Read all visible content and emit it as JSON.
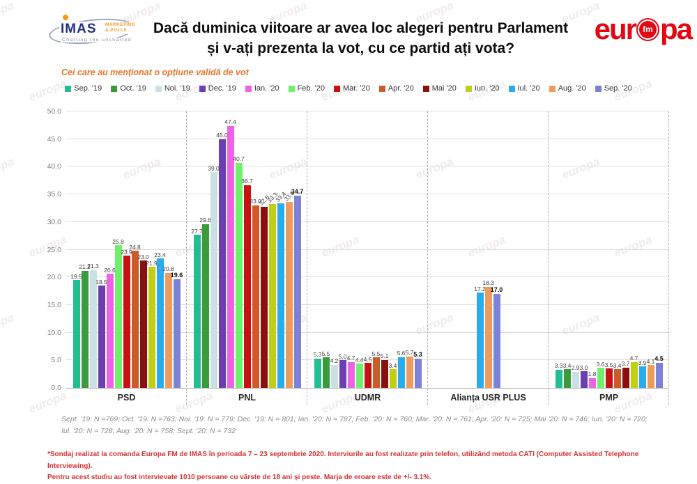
{
  "header": {
    "imas_logo": {
      "name": "IMAS",
      "sub_line1": "MARKETING",
      "sub_line2": "& POLLS",
      "tagline": "Charting the uncharted"
    },
    "title_line1": "Dacă duminica viitoare ar avea loc alegeri pentru Parlament",
    "title_line2": "și v-ați prezenta la vot, cu ce partid ați vota?",
    "europafm_logo": {
      "part1": "eur",
      "fm": "fm",
      "part2": "pa",
      "color": "#E30613"
    }
  },
  "subtitle": "Cei care au menționat o opțiune validă de vot",
  "watermark_text": "europa",
  "chart_data": {
    "type": "bar",
    "title": "Dacă duminica viitoare ar avea loc alegeri pentru Parlament și v-ați prezenta la vot, cu ce partid ați vota?",
    "xlabel": "",
    "ylabel": "",
    "ylim": [
      0,
      50
    ],
    "ytick_step": 5,
    "grid": true,
    "legend_position": "top",
    "value_labels": true,
    "last_series_emphasis": true,
    "categories": [
      "PSD",
      "PNL",
      "UDMR",
      "Alianța USR PLUS",
      "PMP"
    ],
    "series": [
      {
        "name": "Sep. '19",
        "color": "#1FBF92",
        "values": [
          19.5,
          27.7,
          5.3,
          null,
          3.3
        ]
      },
      {
        "name": "Oct. '19",
        "color": "#3A9B3A",
        "values": [
          21.2,
          29.6,
          5.5,
          null,
          3.4
        ]
      },
      {
        "name": "Noi. '19",
        "color": "#C9E0E4",
        "values": [
          21.3,
          39.0,
          4.2,
          null,
          2.9
        ]
      },
      {
        "name": "Dec. '19",
        "color": "#6B3FAF",
        "values": [
          18.5,
          45.0,
          5.0,
          null,
          3.0
        ]
      },
      {
        "name": "Ian. '20",
        "color": "#EE62E6",
        "values": [
          20.6,
          47.4,
          4.7,
          null,
          1.8
        ]
      },
      {
        "name": "Feb. '20",
        "color": "#6FEF6D",
        "values": [
          25.8,
          40.7,
          4.4,
          null,
          3.6
        ]
      },
      {
        "name": "Mar. '20",
        "color": "#C81112",
        "values": [
          23.9,
          36.7,
          4.5,
          null,
          3.5
        ]
      },
      {
        "name": "Apr. '20",
        "color": "#CE5A28",
        "values": [
          24.8,
          33.0,
          5.5,
          null,
          3.4
        ]
      },
      {
        "name": "Mai '20",
        "color": "#8B0E10",
        "values": [
          23.0,
          32.8,
          5.1,
          null,
          3.7
        ]
      },
      {
        "name": "Iun. '20",
        "color": "#C2CE14",
        "values": [
          21.9,
          33.3,
          3.4,
          null,
          4.7
        ]
      },
      {
        "name": "Iul. '20",
        "color": "#29ACEC",
        "values": [
          23.4,
          33.4,
          5.6,
          17.2,
          3.9
        ]
      },
      {
        "name": "Aug. '20",
        "color": "#F09B5E",
        "values": [
          20.8,
          33.6,
          5.7,
          18.3,
          4.1
        ]
      },
      {
        "name": "Sep. '20",
        "color": "#7E82D6",
        "values": [
          19.6,
          34.7,
          5.3,
          17.0,
          4.5
        ]
      }
    ]
  },
  "footnotes": {
    "samples": "Sept. '19: N =769; Oct. '19: N =763; Noi. '19: N = 779; Dec. '19: N = 801; Ian. '20: N = 787; Feb. '20: N = 760; Mar. '20: N = 761; Apr. '20: N = 725; Mai '20: N = 746; Iun. '20: N = 720; Iul. '20: N = 728; Aug. '20: N = 758; Sept. '20: N = 732",
    "methodology_line1": "*Sondaj realizat la comanda Europa FM de IMAS în perioada 7 – 23 septembrie 2020. Interviurile au fost realizate prin telefon, utilizând metoda CATI (Computer Assisted Telephone Interviewing).",
    "methodology_line2": "Pentru acest studiu au fost intervievate 1010 persoane cu vârste de 18 ani și peste. Marja de eroare este de +/- 3.1%."
  }
}
